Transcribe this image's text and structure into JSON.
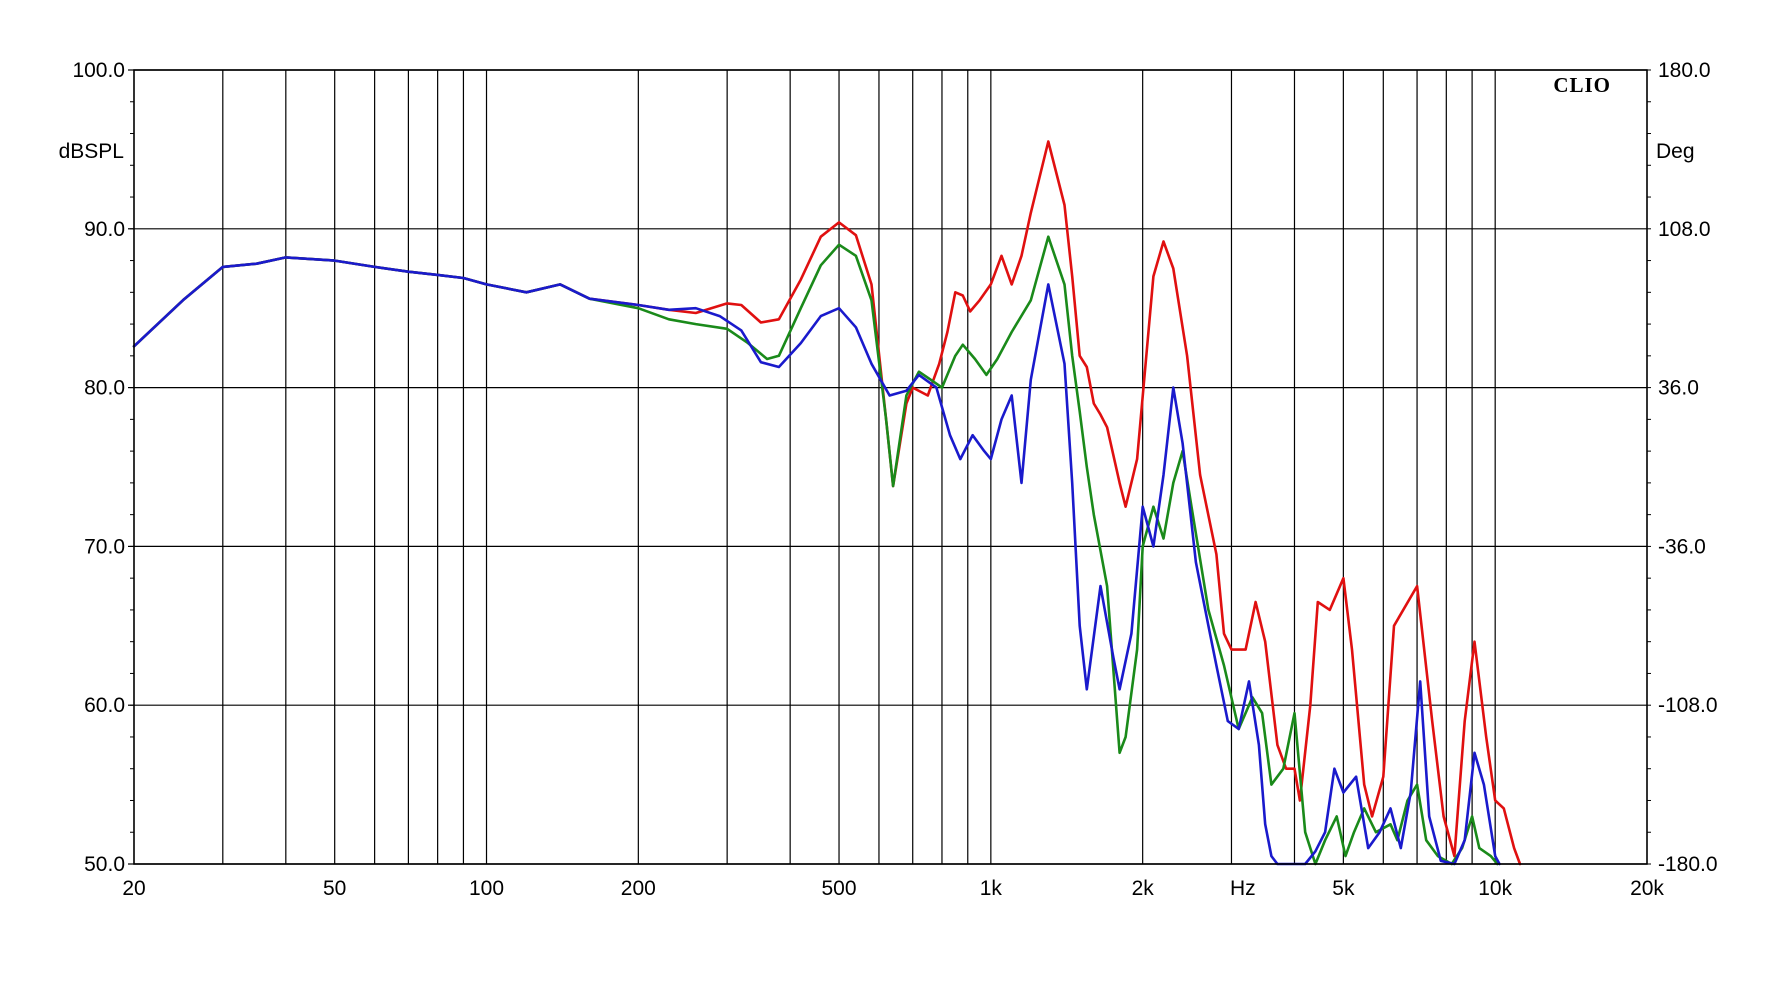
{
  "brand": "CLIO",
  "chart_data": {
    "type": "line",
    "x_scale": "log",
    "xlim": [
      20,
      20000
    ],
    "ylim": [
      50,
      100
    ],
    "y2lim": [
      -180,
      180
    ],
    "grid": true,
    "ylabel": "dBSPL",
    "y2label": "Deg",
    "x_unit_label": "Hz",
    "x_tick_labels": [
      {
        "value": 20,
        "label": "20"
      },
      {
        "value": 50,
        "label": "50"
      },
      {
        "value": 100,
        "label": "100"
      },
      {
        "value": 200,
        "label": "200"
      },
      {
        "value": 500,
        "label": "500"
      },
      {
        "value": 1000,
        "label": "1k"
      },
      {
        "value": 2000,
        "label": "2k"
      },
      {
        "value": 5000,
        "label": "5k"
      },
      {
        "value": 10000,
        "label": "10k"
      },
      {
        "value": 20000,
        "label": "20k"
      }
    ],
    "x_unit_position_value": 3160,
    "x_gridlines": [
      30,
      40,
      50,
      60,
      70,
      80,
      90,
      100,
      200,
      300,
      400,
      500,
      600,
      700,
      800,
      900,
      1000,
      2000,
      3000,
      4000,
      5000,
      6000,
      7000,
      8000,
      9000,
      10000
    ],
    "y_ticks": [
      {
        "value": 100,
        "label": "100.0"
      },
      {
        "value": 90,
        "label": "90.0"
      },
      {
        "value": 80,
        "label": "80.0"
      },
      {
        "value": 70,
        "label": "70.0"
      },
      {
        "value": 60,
        "label": "60.0"
      },
      {
        "value": 50,
        "label": "50.0"
      }
    ],
    "y2_ticks": [
      {
        "value": 180,
        "label": "180.0"
      },
      {
        "value": 108,
        "label": "108.0"
      },
      {
        "value": 36,
        "label": "36.0"
      },
      {
        "value": -36,
        "label": "-36.0"
      },
      {
        "value": -108,
        "label": "-108.0"
      },
      {
        "value": -180,
        "label": "-180.0"
      }
    ],
    "series": [
      {
        "color": "#e01010",
        "points": [
          [
            20,
            82.6
          ],
          [
            25,
            85.5
          ],
          [
            30,
            87.6
          ],
          [
            35,
            87.8
          ],
          [
            40,
            88.2
          ],
          [
            50,
            88.0
          ],
          [
            60,
            87.6
          ],
          [
            70,
            87.3
          ],
          [
            80,
            87.1
          ],
          [
            90,
            86.9
          ],
          [
            100,
            86.5
          ],
          [
            120,
            86.0
          ],
          [
            140,
            86.5
          ],
          [
            160,
            85.6
          ],
          [
            200,
            85.2
          ],
          [
            230,
            84.9
          ],
          [
            260,
            84.7
          ],
          [
            300,
            85.3
          ],
          [
            320,
            85.2
          ],
          [
            350,
            84.1
          ],
          [
            380,
            84.3
          ],
          [
            420,
            86.8
          ],
          [
            460,
            89.5
          ],
          [
            500,
            90.4
          ],
          [
            540,
            89.6
          ],
          [
            580,
            86.5
          ],
          [
            620,
            78.0
          ],
          [
            640,
            73.8
          ],
          [
            680,
            79.0
          ],
          [
            700,
            80.0
          ],
          [
            750,
            79.5
          ],
          [
            790,
            81.5
          ],
          [
            820,
            83.5
          ],
          [
            850,
            86.0
          ],
          [
            880,
            85.8
          ],
          [
            910,
            84.8
          ],
          [
            950,
            85.5
          ],
          [
            1000,
            86.5
          ],
          [
            1050,
            88.3
          ],
          [
            1100,
            86.5
          ],
          [
            1150,
            88.3
          ],
          [
            1200,
            91.0
          ],
          [
            1300,
            95.5
          ],
          [
            1400,
            91.5
          ],
          [
            1450,
            87.0
          ],
          [
            1500,
            82.0
          ],
          [
            1550,
            81.3
          ],
          [
            1600,
            79.0
          ],
          [
            1650,
            78.3
          ],
          [
            1700,
            77.5
          ],
          [
            1800,
            74.0
          ],
          [
            1850,
            72.5
          ],
          [
            1950,
            75.5
          ],
          [
            2100,
            87.0
          ],
          [
            2200,
            89.2
          ],
          [
            2300,
            87.5
          ],
          [
            2450,
            82.0
          ],
          [
            2600,
            74.5
          ],
          [
            2800,
            69.5
          ],
          [
            2900,
            64.5
          ],
          [
            3000,
            63.5
          ],
          [
            3200,
            63.5
          ],
          [
            3350,
            66.5
          ],
          [
            3500,
            64.0
          ],
          [
            3700,
            57.5
          ],
          [
            3850,
            56.0
          ],
          [
            4000,
            56.0
          ],
          [
            4100,
            54.0
          ],
          [
            4300,
            60.0
          ],
          [
            4450,
            66.5
          ],
          [
            4700,
            66.0
          ],
          [
            5000,
            68.0
          ],
          [
            5200,
            63.5
          ],
          [
            5500,
            55.0
          ],
          [
            5700,
            53.0
          ],
          [
            6000,
            55.5
          ],
          [
            6300,
            65.0
          ],
          [
            7000,
            67.5
          ],
          [
            7500,
            59.0
          ],
          [
            7900,
            53.0
          ],
          [
            8300,
            50.5
          ],
          [
            8700,
            59.0
          ],
          [
            9100,
            64.0
          ],
          [
            9600,
            58.0
          ],
          [
            10000,
            54.0
          ],
          [
            10400,
            53.5
          ],
          [
            10900,
            51.0
          ],
          [
            11200,
            50.0
          ]
        ]
      },
      {
        "color": "#1a8a1a",
        "points": [
          [
            20,
            82.6
          ],
          [
            25,
            85.5
          ],
          [
            30,
            87.6
          ],
          [
            35,
            87.8
          ],
          [
            40,
            88.2
          ],
          [
            50,
            88.0
          ],
          [
            60,
            87.6
          ],
          [
            70,
            87.3
          ],
          [
            80,
            87.1
          ],
          [
            90,
            86.9
          ],
          [
            100,
            86.5
          ],
          [
            120,
            86.0
          ],
          [
            140,
            86.5
          ],
          [
            160,
            85.6
          ],
          [
            200,
            85.0
          ],
          [
            230,
            84.3
          ],
          [
            260,
            84.0
          ],
          [
            300,
            83.7
          ],
          [
            330,
            82.8
          ],
          [
            360,
            81.8
          ],
          [
            380,
            82.0
          ],
          [
            420,
            85.0
          ],
          [
            460,
            87.7
          ],
          [
            500,
            89.0
          ],
          [
            540,
            88.3
          ],
          [
            580,
            85.5
          ],
          [
            620,
            78.0
          ],
          [
            640,
            73.8
          ],
          [
            680,
            79.5
          ],
          [
            720,
            81.0
          ],
          [
            760,
            80.5
          ],
          [
            800,
            80.0
          ],
          [
            850,
            82.0
          ],
          [
            880,
            82.7
          ],
          [
            930,
            81.8
          ],
          [
            980,
            80.8
          ],
          [
            1030,
            81.8
          ],
          [
            1100,
            83.5
          ],
          [
            1200,
            85.5
          ],
          [
            1300,
            89.5
          ],
          [
            1400,
            86.5
          ],
          [
            1450,
            82.0
          ],
          [
            1500,
            78.5
          ],
          [
            1550,
            75.0
          ],
          [
            1600,
            72.0
          ],
          [
            1700,
            67.5
          ],
          [
            1800,
            57.0
          ],
          [
            1850,
            58.0
          ],
          [
            1950,
            63.5
          ],
          [
            2000,
            70.0
          ],
          [
            2100,
            72.5
          ],
          [
            2200,
            70.5
          ],
          [
            2300,
            74.0
          ],
          [
            2400,
            76.0
          ],
          [
            2500,
            72.5
          ],
          [
            2700,
            66.0
          ],
          [
            2900,
            62.5
          ],
          [
            3100,
            58.5
          ],
          [
            3300,
            60.5
          ],
          [
            3450,
            59.5
          ],
          [
            3600,
            55.0
          ],
          [
            3800,
            56.0
          ],
          [
            4000,
            59.5
          ],
          [
            4200,
            52.0
          ],
          [
            4400,
            50.0
          ],
          [
            4600,
            51.5
          ],
          [
            4850,
            53.0
          ],
          [
            5050,
            50.5
          ],
          [
            5250,
            52.0
          ],
          [
            5500,
            53.5
          ],
          [
            5800,
            52.0
          ],
          [
            6200,
            52.5
          ],
          [
            6400,
            51.5
          ],
          [
            6700,
            54.0
          ],
          [
            7000,
            55.0
          ],
          [
            7300,
            51.5
          ],
          [
            7700,
            50.5
          ],
          [
            8200,
            50.0
          ],
          [
            8600,
            51.0
          ],
          [
            9000,
            53.0
          ],
          [
            9300,
            51.0
          ],
          [
            9800,
            50.5
          ],
          [
            10100,
            50.0
          ]
        ]
      },
      {
        "color": "#1a1acc",
        "points": [
          [
            20,
            82.6
          ],
          [
            25,
            85.5
          ],
          [
            30,
            87.6
          ],
          [
            35,
            87.8
          ],
          [
            40,
            88.2
          ],
          [
            50,
            88.0
          ],
          [
            60,
            87.6
          ],
          [
            70,
            87.3
          ],
          [
            80,
            87.1
          ],
          [
            90,
            86.9
          ],
          [
            100,
            86.5
          ],
          [
            120,
            86.0
          ],
          [
            140,
            86.5
          ],
          [
            160,
            85.6
          ],
          [
            200,
            85.2
          ],
          [
            230,
            84.9
          ],
          [
            260,
            85.0
          ],
          [
            290,
            84.5
          ],
          [
            320,
            83.6
          ],
          [
            350,
            81.6
          ],
          [
            380,
            81.3
          ],
          [
            420,
            82.8
          ],
          [
            460,
            84.5
          ],
          [
            500,
            85.0
          ],
          [
            540,
            83.8
          ],
          [
            580,
            81.5
          ],
          [
            630,
            79.5
          ],
          [
            680,
            79.8
          ],
          [
            720,
            80.8
          ],
          [
            780,
            80.0
          ],
          [
            830,
            77.0
          ],
          [
            870,
            75.5
          ],
          [
            920,
            77.0
          ],
          [
            970,
            76.0
          ],
          [
            1000,
            75.5
          ],
          [
            1050,
            78.0
          ],
          [
            1100,
            79.5
          ],
          [
            1150,
            74.0
          ],
          [
            1200,
            80.5
          ],
          [
            1300,
            86.5
          ],
          [
            1400,
            81.5
          ],
          [
            1450,
            74.0
          ],
          [
            1500,
            65.0
          ],
          [
            1550,
            61.0
          ],
          [
            1650,
            67.5
          ],
          [
            1750,
            63.0
          ],
          [
            1800,
            61.0
          ],
          [
            1900,
            64.5
          ],
          [
            2000,
            72.5
          ],
          [
            2100,
            70.0
          ],
          [
            2200,
            74.5
          ],
          [
            2300,
            80.0
          ],
          [
            2400,
            76.5
          ],
          [
            2550,
            69.0
          ],
          [
            2700,
            65.0
          ],
          [
            2800,
            62.5
          ],
          [
            2950,
            59.0
          ],
          [
            3100,
            58.5
          ],
          [
            3250,
            61.5
          ],
          [
            3400,
            57.5
          ],
          [
            3500,
            52.5
          ],
          [
            3600,
            50.5
          ],
          [
            3700,
            50.0
          ],
          [
            4200,
            50.0
          ],
          [
            4400,
            50.8
          ],
          [
            4600,
            52.0
          ],
          [
            4800,
            56.0
          ],
          [
            5000,
            54.5
          ],
          [
            5300,
            55.5
          ],
          [
            5600,
            51.0
          ],
          [
            5900,
            52.0
          ],
          [
            6200,
            53.5
          ],
          [
            6500,
            51.0
          ],
          [
            6800,
            54.5
          ],
          [
            7100,
            61.5
          ],
          [
            7400,
            53.0
          ],
          [
            7800,
            50.2
          ],
          [
            8300,
            50.0
          ],
          [
            8700,
            51.5
          ],
          [
            9100,
            57.0
          ],
          [
            9500,
            55.0
          ],
          [
            10000,
            50.5
          ],
          [
            10200,
            50.0
          ]
        ]
      }
    ]
  }
}
